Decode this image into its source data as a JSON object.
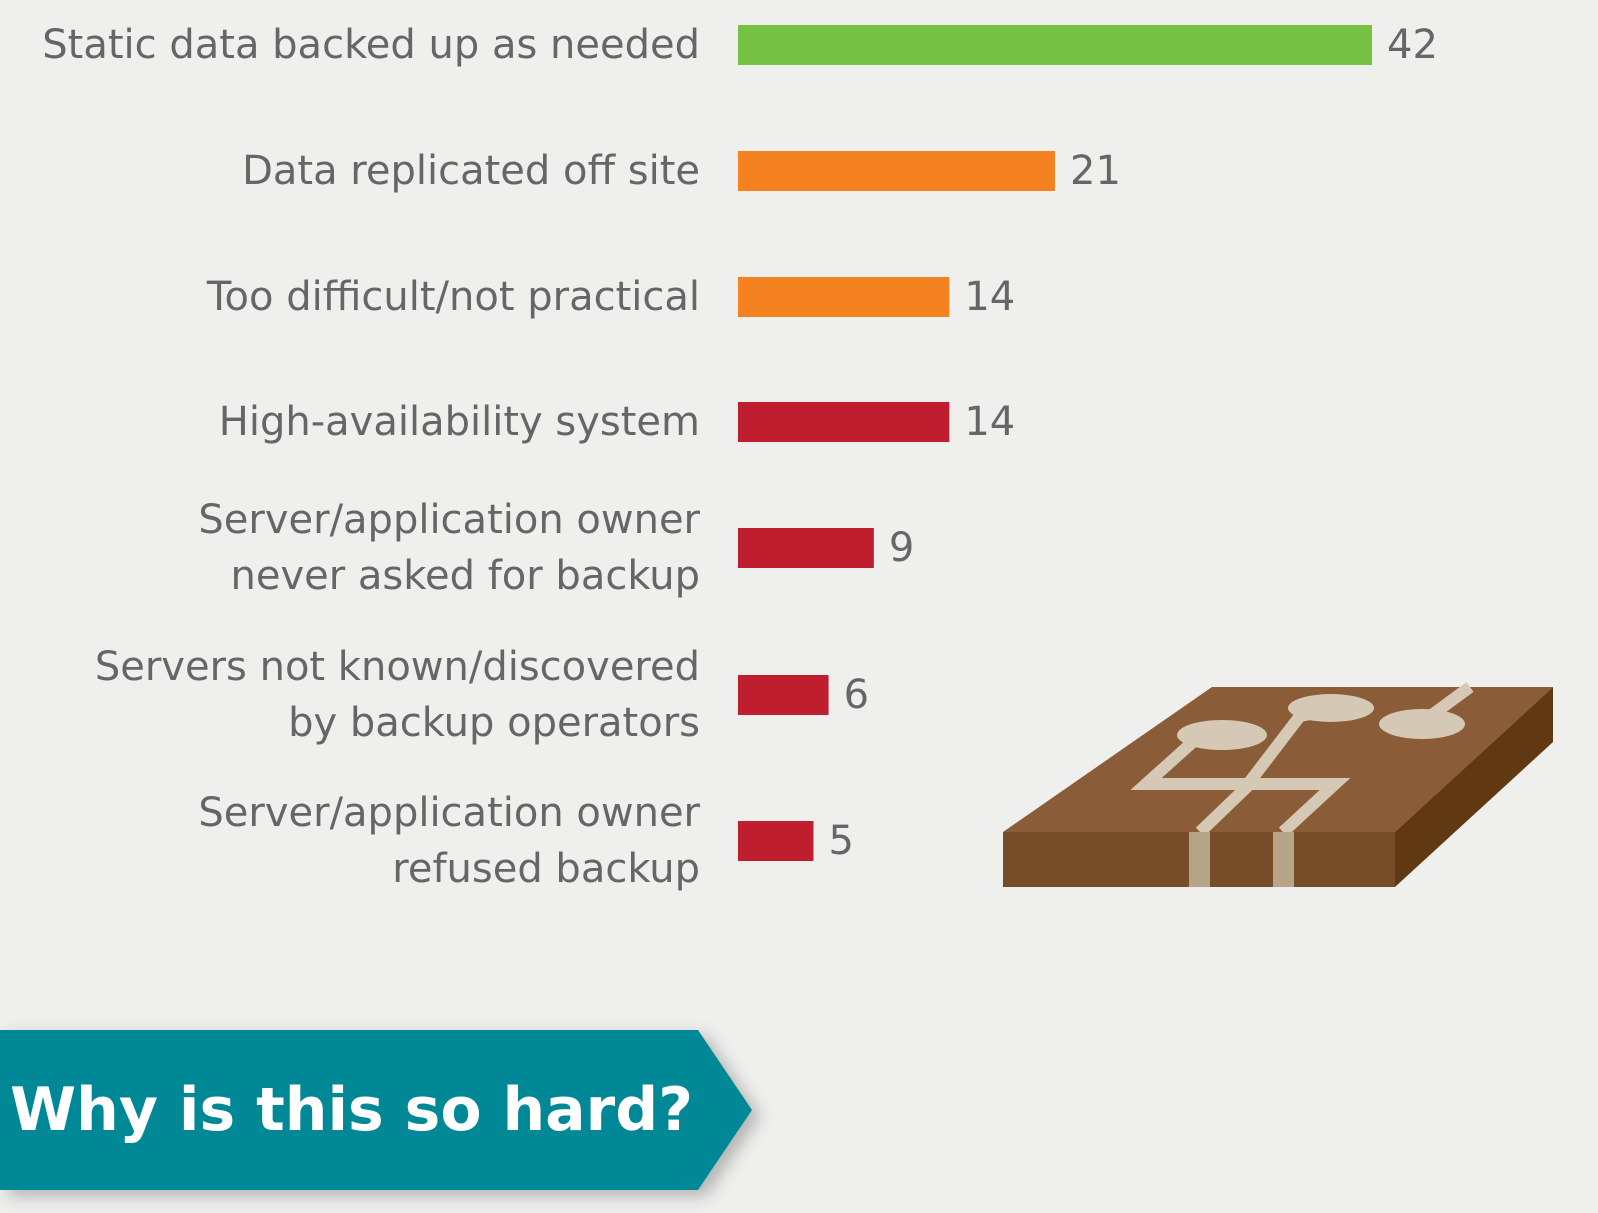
{
  "chart_data": {
    "type": "bar",
    "orientation": "horizontal",
    "categories": [
      "Static data backed up as needed",
      "Data replicated off site",
      "Too difficult/not practical",
      "High-availability system",
      "Server/application owner\nnever asked for backup",
      "Servers not known/discovered\nby backup operators",
      "Server/application owner\nrefused backup"
    ],
    "values": [
      42,
      21,
      14,
      14,
      9,
      6,
      5
    ],
    "colors": [
      "#76c043",
      "#f58220",
      "#f58220",
      "#be1e2d",
      "#be1e2d",
      "#be1e2d",
      "#be1e2d"
    ]
  },
  "banner": {
    "text": "Why is this so hard?"
  }
}
